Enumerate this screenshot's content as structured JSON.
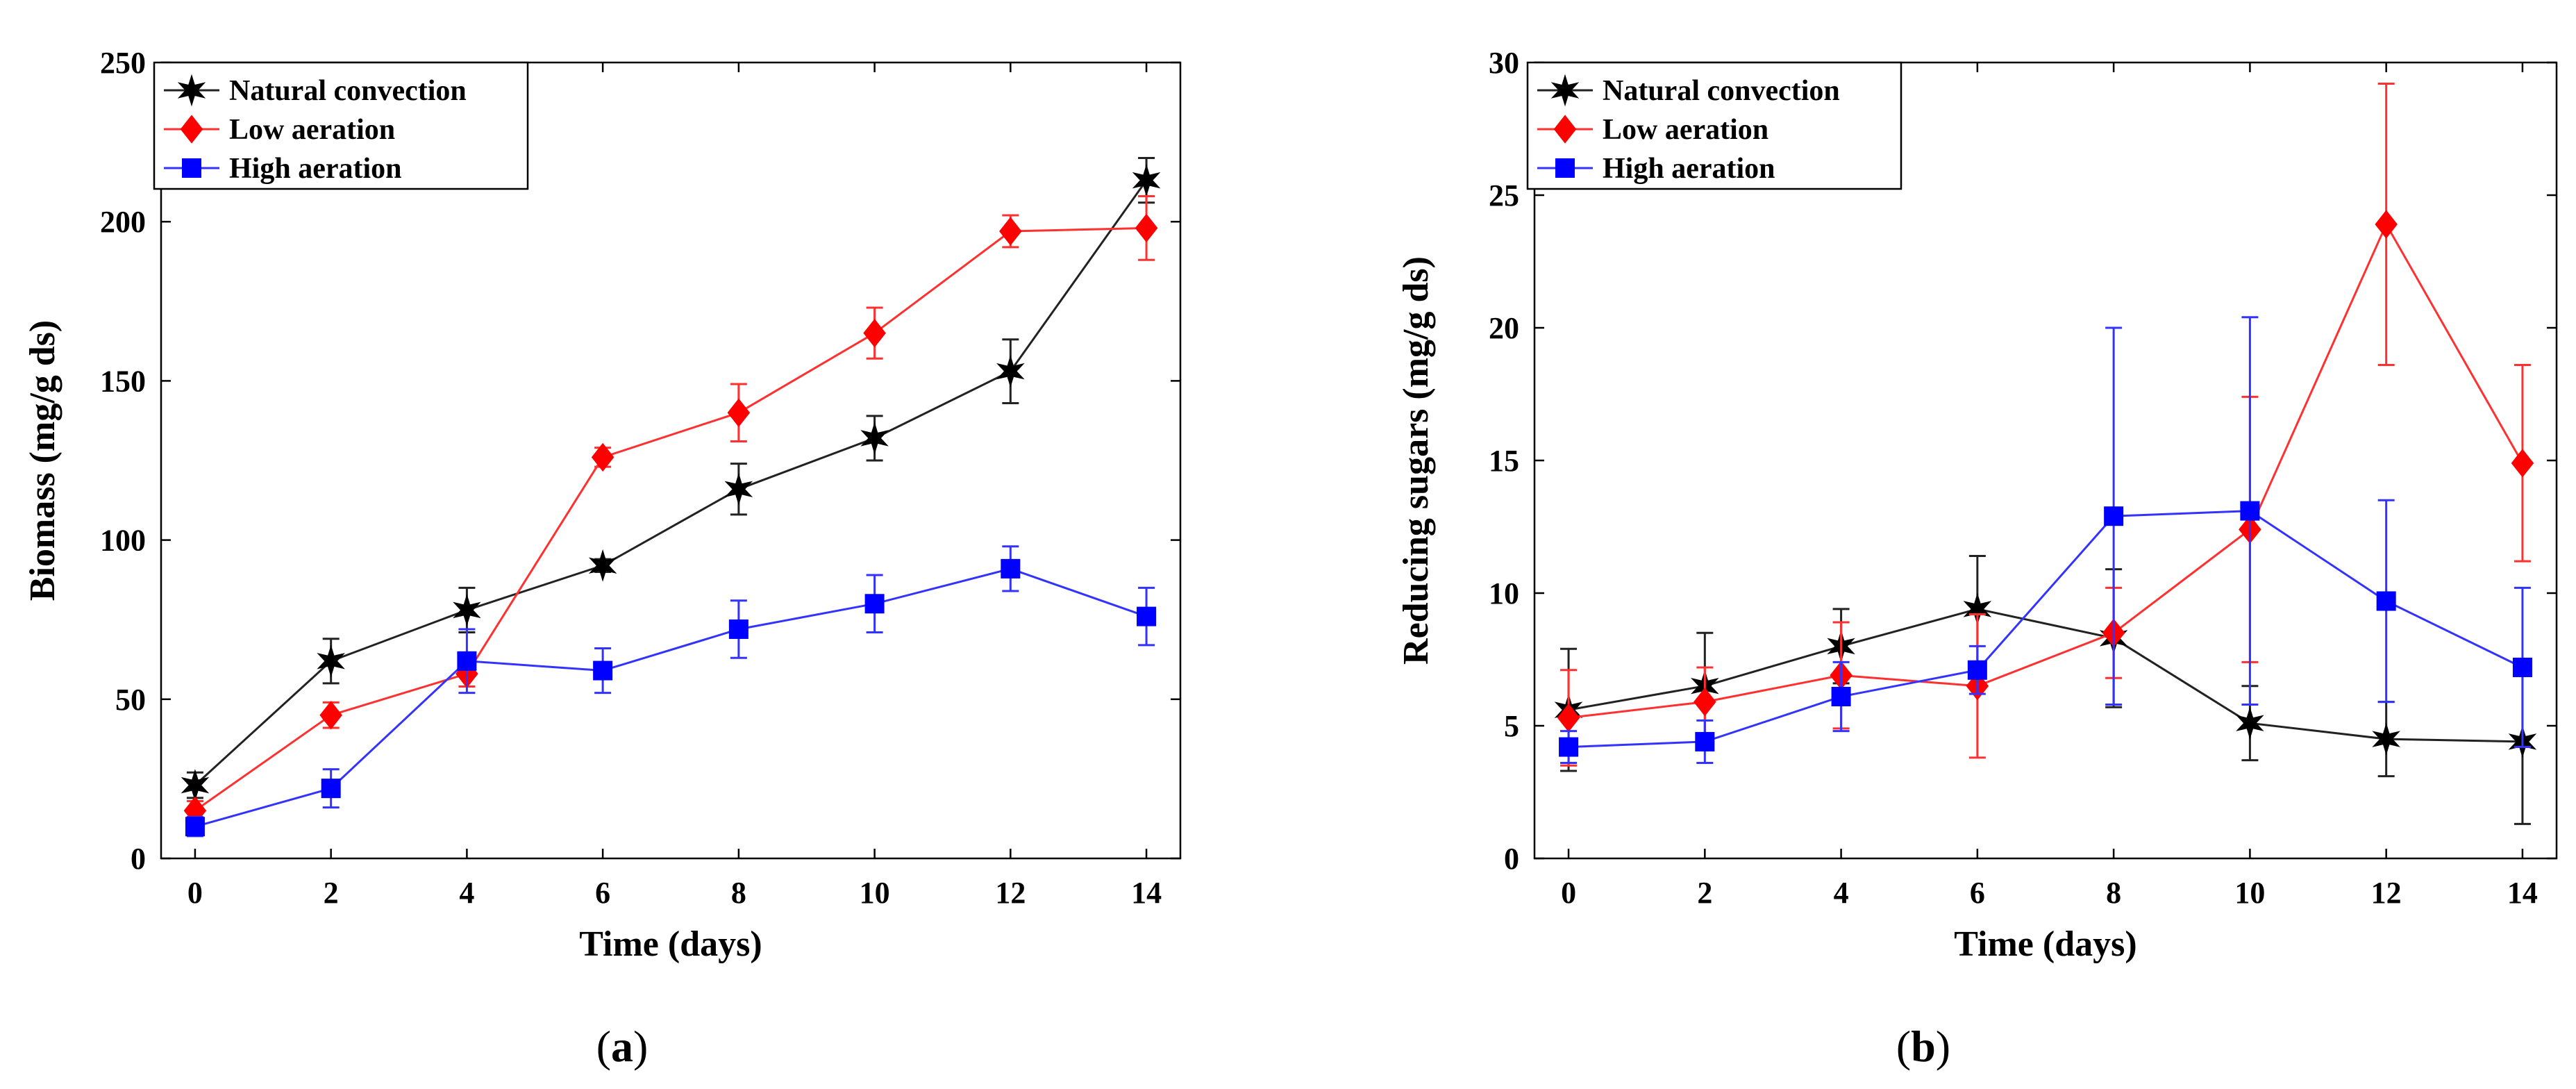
{
  "colors": {
    "natural": "#000000",
    "low": "#ff0000",
    "high": "#0000ff",
    "natural_line": "#222222",
    "low_line": "#ff3030",
    "high_line": "#3333ff"
  },
  "panel_labels": {
    "a": {
      "open": "(",
      "letter": "a",
      "close": ")"
    },
    "b": {
      "open": "(",
      "letter": "b",
      "close": ")"
    }
  },
  "chart_data": [
    {
      "panel": "a",
      "type": "line",
      "xlabel": "Time (days)",
      "ylabel": "Biomass (mg/g ds)",
      "xlim": [
        -0.5,
        14.5
      ],
      "ylim": [
        0,
        250
      ],
      "xticks": [
        0,
        2,
        4,
        6,
        8,
        10,
        12,
        14
      ],
      "yticks": [
        0,
        50,
        100,
        150,
        200,
        250
      ],
      "grid": false,
      "legend_position": "top-left",
      "x": [
        0,
        2,
        4,
        6,
        8,
        10,
        12,
        14
      ],
      "series": [
        {
          "key": "natural",
          "name": "Natural convection",
          "marker": "star",
          "values": [
            23,
            62,
            78,
            92,
            116,
            132,
            153,
            213
          ],
          "errors": [
            4,
            7,
            7,
            2,
            8,
            7,
            10,
            7
          ]
        },
        {
          "key": "low",
          "name": "Low aeration",
          "marker": "diamond",
          "values": [
            15,
            45,
            58,
            126,
            140,
            165,
            197,
            198
          ],
          "errors": [
            3,
            4,
            4,
            3,
            9,
            8,
            5,
            10
          ]
        },
        {
          "key": "high",
          "name": "High aeration",
          "marker": "square",
          "values": [
            10,
            22,
            62,
            59,
            72,
            80,
            91,
            76
          ],
          "errors": [
            3,
            6,
            10,
            7,
            9,
            9,
            7,
            9
          ]
        }
      ]
    },
    {
      "panel": "b",
      "type": "line",
      "xlabel": "Time (days)",
      "ylabel": "Reducing sugars (mg/g ds)",
      "xlim": [
        -0.5,
        14.5
      ],
      "ylim": [
        0,
        30
      ],
      "xticks": [
        0,
        2,
        4,
        6,
        8,
        10,
        12,
        14
      ],
      "yticks": [
        0,
        5,
        10,
        15,
        20,
        25,
        30
      ],
      "grid": false,
      "legend_position": "top-left",
      "x": [
        0,
        2,
        4,
        6,
        8,
        10,
        12,
        14
      ],
      "series": [
        {
          "key": "natural",
          "name": "Natural convection",
          "marker": "star",
          "values": [
            5.6,
            6.5,
            8.0,
            9.4,
            8.3,
            5.1,
            4.5,
            4.4
          ],
          "errors": [
            2.3,
            2.0,
            1.4,
            2.0,
            2.6,
            1.4,
            1.4,
            3.1
          ]
        },
        {
          "key": "low",
          "name": "Low aeration",
          "marker": "diamond",
          "values": [
            5.3,
            5.9,
            6.9,
            6.5,
            8.5,
            12.4,
            23.9,
            14.9
          ],
          "errors": [
            1.8,
            1.3,
            2.0,
            2.7,
            1.7,
            5.0,
            5.3,
            3.7
          ]
        },
        {
          "key": "high",
          "name": "High aeration",
          "marker": "square",
          "values": [
            4.2,
            4.4,
            6.1,
            7.1,
            12.9,
            13.1,
            9.7,
            7.2
          ],
          "errors": [
            0.6,
            0.8,
            1.3,
            0.9,
            7.1,
            7.3,
            3.8,
            3.0
          ]
        }
      ]
    }
  ]
}
